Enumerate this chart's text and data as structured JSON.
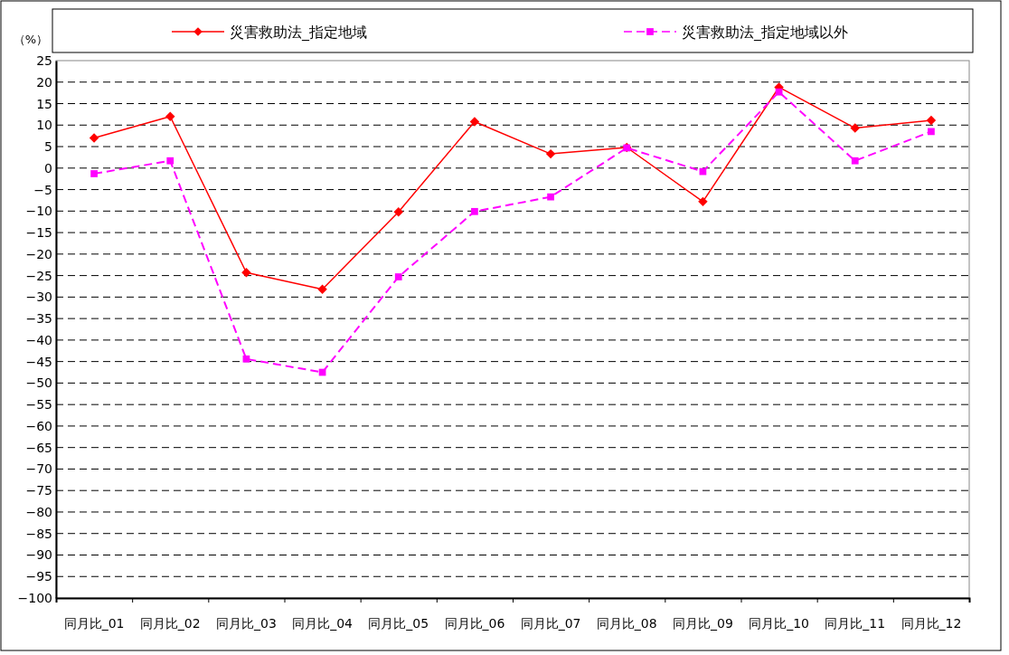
{
  "chart_data": {
    "type": "line",
    "ylabel": "（%）",
    "categories": [
      "同月比_01",
      "同月比_02",
      "同月比_03",
      "同月比_04",
      "同月比_05",
      "同月比_06",
      "同月比_07",
      "同月比_08",
      "同月比_09",
      "同月比_10",
      "同月比_11",
      "同月比_12"
    ],
    "series": [
      {
        "name": "災害救助法_指定地域",
        "color": "#ff0000",
        "marker": "diamond",
        "line_style": "solid",
        "values": [
          7,
          12,
          -24.3,
          -28.2,
          -10.2,
          10.8,
          3.3,
          4.8,
          -7.8,
          18.8,
          9.3,
          11.1
        ]
      },
      {
        "name": "災害救助法_指定地域以外",
        "color": "#ff00ff",
        "marker": "square",
        "line_style": "dashed",
        "values": [
          -1.3,
          1.7,
          -44.4,
          -47.5,
          -25.3,
          -10.1,
          -6.7,
          4.7,
          -0.8,
          17.7,
          1.7,
          8.5
        ]
      }
    ],
    "ylim": [
      -100,
      25
    ],
    "yticks": [
      25,
      20,
      15,
      10,
      5,
      0,
      -5,
      -10,
      -15,
      -20,
      -25,
      -30,
      -35,
      -40,
      -45,
      -50,
      -55,
      -60,
      -65,
      -70,
      -75,
      -80,
      -85,
      -90,
      -95,
      -100
    ],
    "grid": "y",
    "legend": "top"
  }
}
